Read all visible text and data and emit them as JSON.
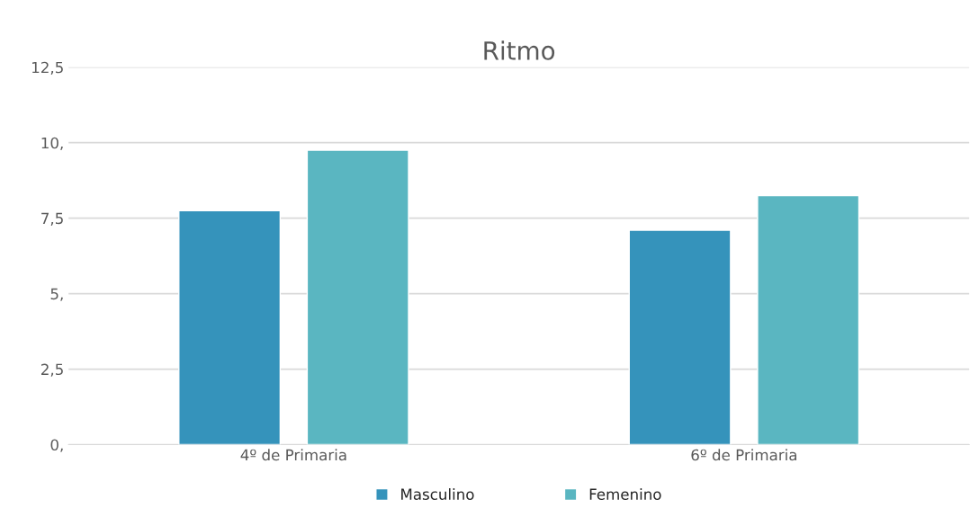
{
  "chart_data": {
    "type": "bar",
    "title": "Ritmo",
    "categories": [
      "4º de Primaria",
      "6º de Primaria"
    ],
    "series": [
      {
        "name": "Masculino",
        "color": "#3593bb",
        "values": [
          7.75,
          7.1
        ]
      },
      {
        "name": "Femenino",
        "color": "#5ab6c1",
        "values": [
          9.75,
          8.25
        ]
      }
    ],
    "ylim": [
      0,
      12.5
    ],
    "yticks": [
      {
        "value": 0,
        "label": "0,"
      },
      {
        "value": 2.5,
        "label": "2,5"
      },
      {
        "value": 5,
        "label": "5,"
      },
      {
        "value": 7.5,
        "label": "7,5"
      },
      {
        "value": 10,
        "label": "10,"
      },
      {
        "value": 12.5,
        "label": "12,5"
      }
    ],
    "grid": "y",
    "legend": "bottom"
  }
}
